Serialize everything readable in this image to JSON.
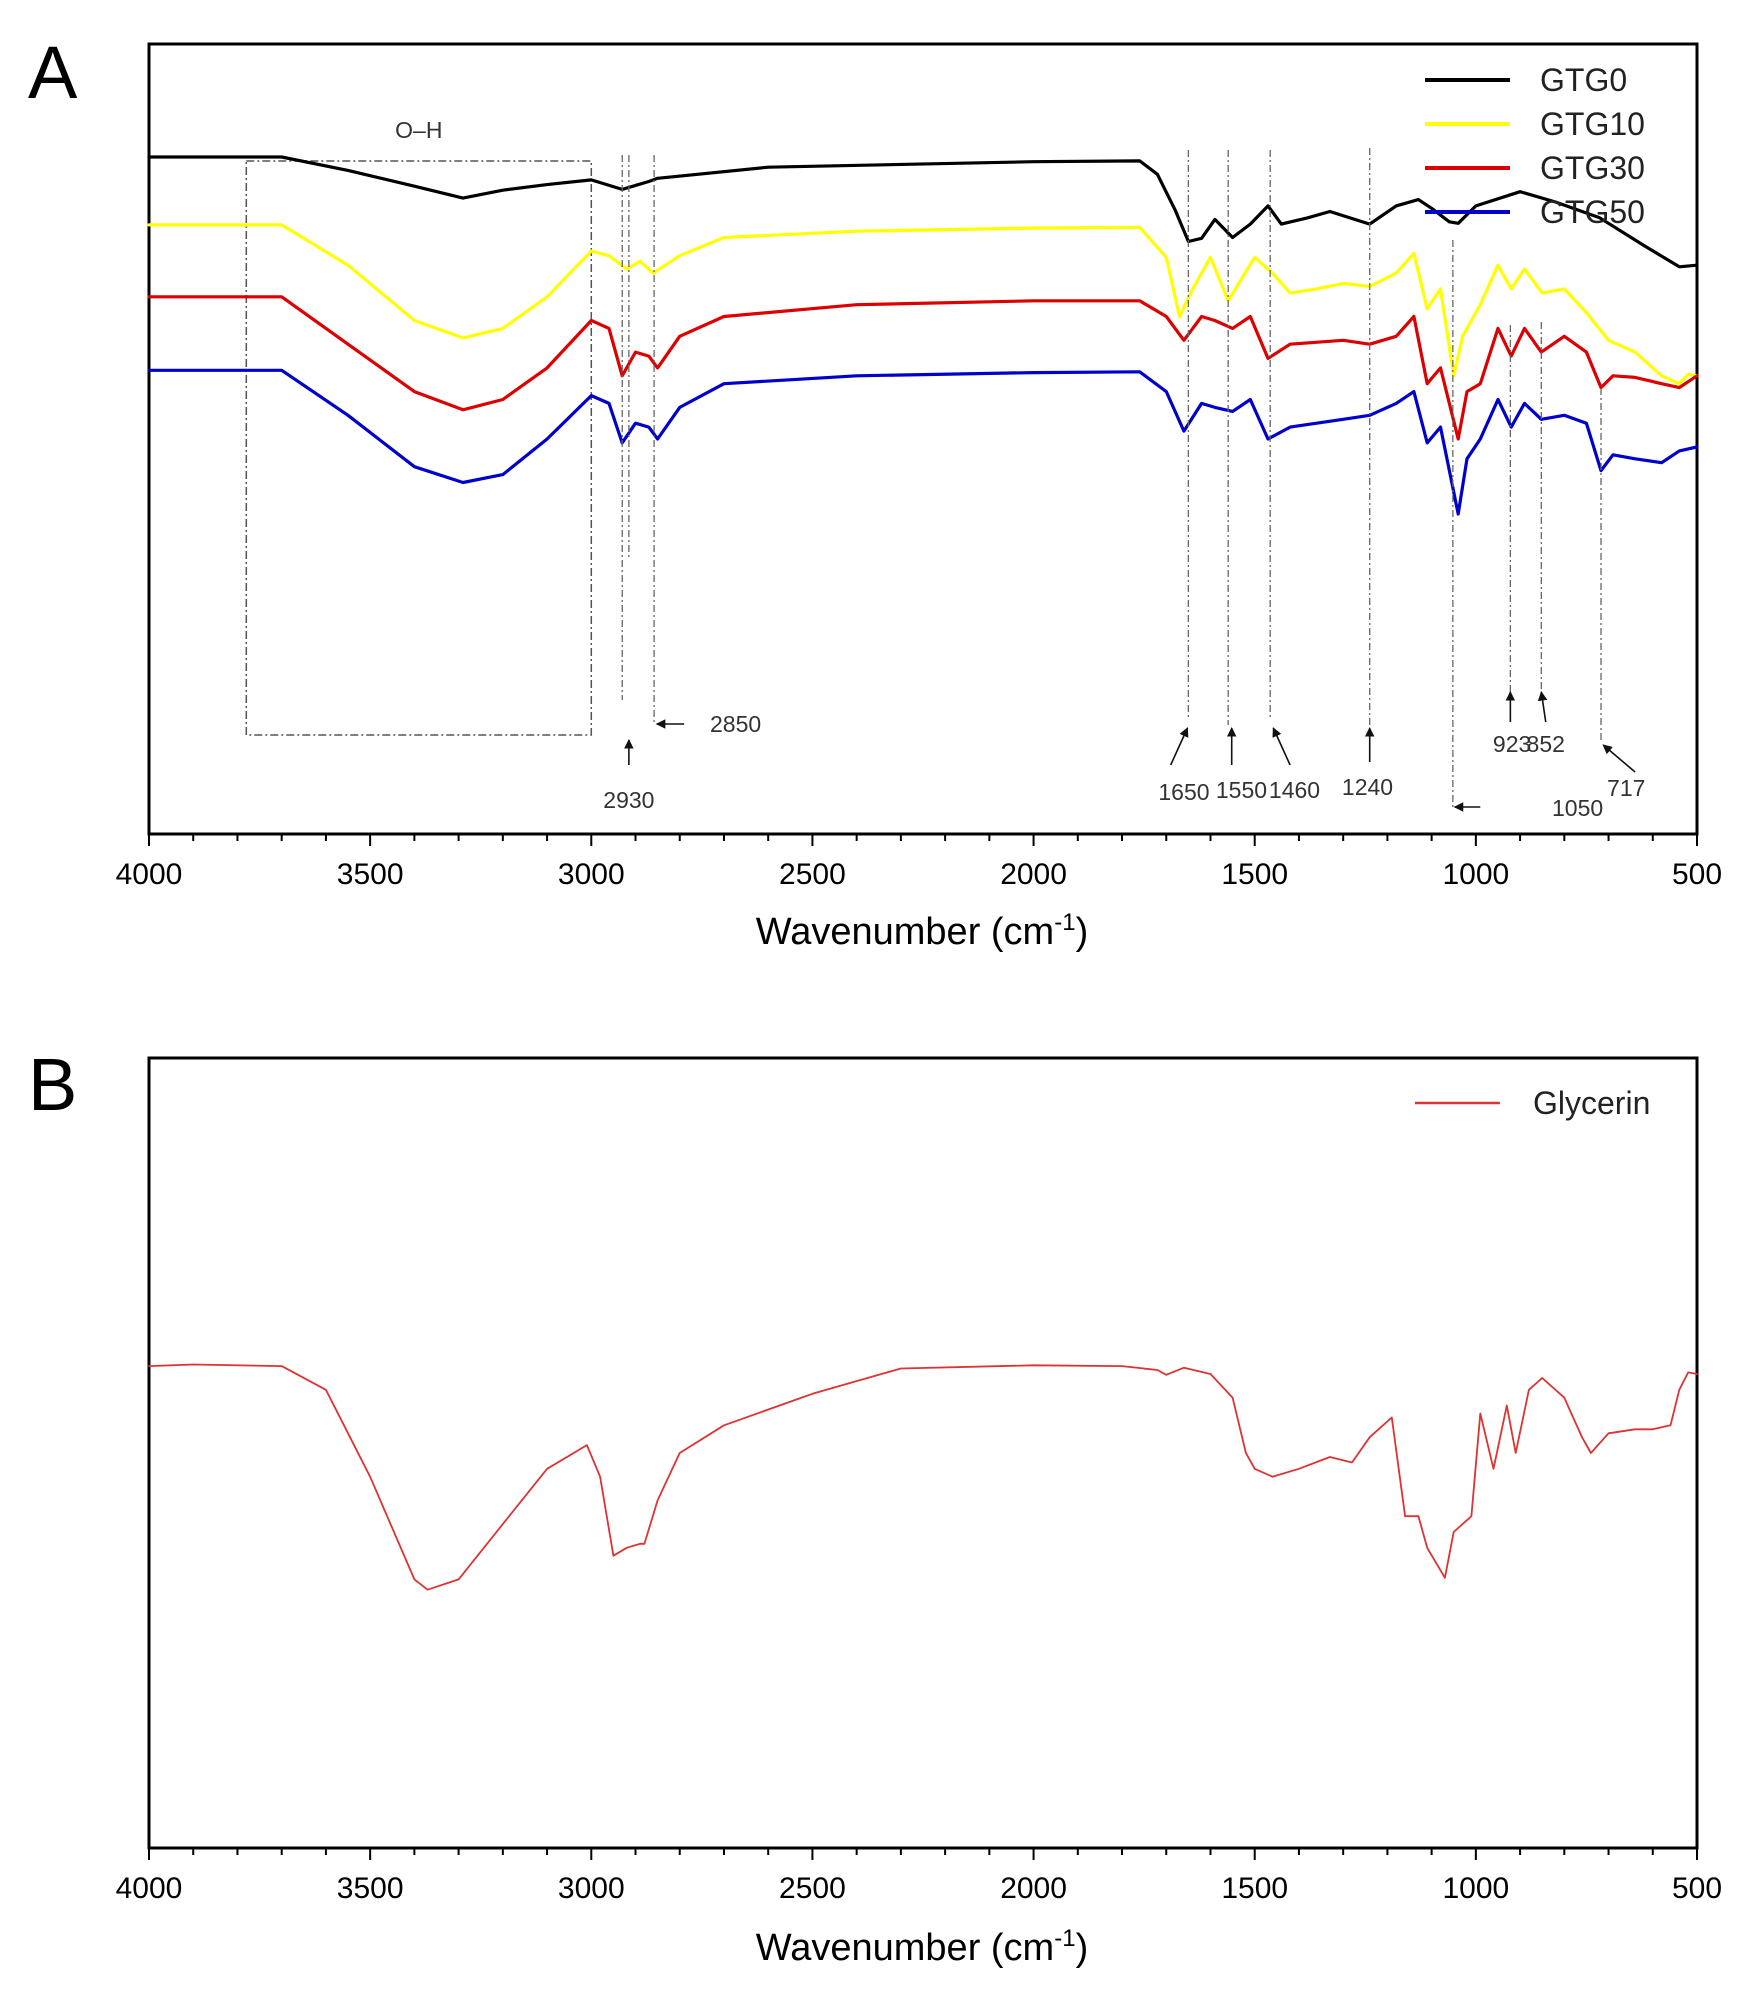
{
  "chart_data": [
    {
      "panel": "A",
      "type": "line",
      "title": "",
      "xlabel": "Wavenumber (cm",
      "xlabel_sup": "-1",
      "xlabel_close": ")",
      "ylabel": "",
      "xlim": [
        4000,
        500
      ],
      "xticks": [
        "4000",
        "3500",
        "3000",
        "2500",
        "2000",
        "1500",
        "1000",
        "500"
      ],
      "legend_position": "top-right",
      "series": [
        {
          "name": "GTG0",
          "color": "#000000",
          "points": [
            [
              4000,
              0.143
            ],
            [
              3700,
              0.143
            ],
            [
              3550,
              0.16
            ],
            [
              3400,
              0.18
            ],
            [
              3290,
              0.195
            ],
            [
              3200,
              0.185
            ],
            [
              3100,
              0.178
            ],
            [
              3000,
              0.172
            ],
            [
              2930,
              0.184
            ],
            [
              2870,
              0.174
            ],
            [
              2850,
              0.17
            ],
            [
              2600,
              0.156
            ],
            [
              2000,
              0.149
            ],
            [
              1760,
              0.148
            ],
            [
              1720,
              0.165
            ],
            [
              1680,
              0.21
            ],
            [
              1650,
              0.25
            ],
            [
              1620,
              0.246
            ],
            [
              1590,
              0.222
            ],
            [
              1550,
              0.245
            ],
            [
              1510,
              0.228
            ],
            [
              1470,
              0.205
            ],
            [
              1440,
              0.228
            ],
            [
              1380,
              0.22
            ],
            [
              1330,
              0.212
            ],
            [
              1240,
              0.228
            ],
            [
              1180,
              0.205
            ],
            [
              1130,
              0.197
            ],
            [
              1100,
              0.208
            ],
            [
              1060,
              0.225
            ],
            [
              1040,
              0.227
            ],
            [
              1000,
              0.205
            ],
            [
              900,
              0.187
            ],
            [
              820,
              0.2
            ],
            [
              720,
              0.22
            ],
            [
              620,
              0.255
            ],
            [
              540,
              0.282
            ],
            [
              500,
              0.28
            ]
          ]
        },
        {
          "name": "GTG10",
          "color": "#ffff00",
          "points": [
            [
              4000,
              0.229
            ],
            [
              3700,
              0.229
            ],
            [
              3550,
              0.28
            ],
            [
              3400,
              0.35
            ],
            [
              3290,
              0.372
            ],
            [
              3200,
              0.36
            ],
            [
              3100,
              0.32
            ],
            [
              3000,
              0.262
            ],
            [
              2960,
              0.268
            ],
            [
              2920,
              0.285
            ],
            [
              2890,
              0.275
            ],
            [
              2860,
              0.29
            ],
            [
              2800,
              0.268
            ],
            [
              2700,
              0.245
            ],
            [
              2400,
              0.237
            ],
            [
              2000,
              0.233
            ],
            [
              1760,
              0.232
            ],
            [
              1700,
              0.27
            ],
            [
              1670,
              0.345
            ],
            [
              1640,
              0.31
            ],
            [
              1600,
              0.27
            ],
            [
              1560,
              0.325
            ],
            [
              1500,
              0.27
            ],
            [
              1460,
              0.29
            ],
            [
              1420,
              0.315
            ],
            [
              1360,
              0.31
            ],
            [
              1300,
              0.303
            ],
            [
              1240,
              0.307
            ],
            [
              1180,
              0.29
            ],
            [
              1140,
              0.265
            ],
            [
              1110,
              0.335
            ],
            [
              1080,
              0.31
            ],
            [
              1050,
              0.42
            ],
            [
              1030,
              0.37
            ],
            [
              990,
              0.33
            ],
            [
              950,
              0.28
            ],
            [
              920,
              0.31
            ],
            [
              890,
              0.285
            ],
            [
              850,
              0.315
            ],
            [
              800,
              0.31
            ],
            [
              750,
              0.34
            ],
            [
              700,
              0.375
            ],
            [
              640,
              0.39
            ],
            [
              580,
              0.42
            ],
            [
              540,
              0.43
            ],
            [
              520,
              0.418
            ],
            [
              500,
              0.42
            ]
          ]
        },
        {
          "name": "GTG30",
          "color": "#dd0000",
          "points": [
            [
              4000,
              0.32
            ],
            [
              3700,
              0.32
            ],
            [
              3550,
              0.38
            ],
            [
              3400,
              0.44
            ],
            [
              3290,
              0.463
            ],
            [
              3200,
              0.45
            ],
            [
              3100,
              0.41
            ],
            [
              3000,
              0.35
            ],
            [
              2960,
              0.36
            ],
            [
              2930,
              0.42
            ],
            [
              2900,
              0.39
            ],
            [
              2870,
              0.395
            ],
            [
              2850,
              0.41
            ],
            [
              2800,
              0.37
            ],
            [
              2700,
              0.345
            ],
            [
              2400,
              0.33
            ],
            [
              2000,
              0.325
            ],
            [
              1760,
              0.325
            ],
            [
              1700,
              0.345
            ],
            [
              1660,
              0.375
            ],
            [
              1620,
              0.345
            ],
            [
              1590,
              0.35
            ],
            [
              1550,
              0.36
            ],
            [
              1510,
              0.345
            ],
            [
              1470,
              0.398
            ],
            [
              1420,
              0.38
            ],
            [
              1300,
              0.375
            ],
            [
              1240,
              0.38
            ],
            [
              1180,
              0.37
            ],
            [
              1140,
              0.345
            ],
            [
              1110,
              0.43
            ],
            [
              1080,
              0.41
            ],
            [
              1040,
              0.5
            ],
            [
              1020,
              0.44
            ],
            [
              990,
              0.43
            ],
            [
              950,
              0.36
            ],
            [
              920,
              0.395
            ],
            [
              890,
              0.36
            ],
            [
              852,
              0.39
            ],
            [
              800,
              0.37
            ],
            [
              750,
              0.39
            ],
            [
              717,
              0.435
            ],
            [
              690,
              0.42
            ],
            [
              640,
              0.422
            ],
            [
              580,
              0.43
            ],
            [
              540,
              0.435
            ],
            [
              500,
              0.42
            ]
          ]
        },
        {
          "name": "GTG50",
          "color": "#0000cc",
          "points": [
            [
              4000,
              0.413
            ],
            [
              3700,
              0.413
            ],
            [
              3550,
              0.47
            ],
            [
              3400,
              0.535
            ],
            [
              3290,
              0.555
            ],
            [
              3200,
              0.545
            ],
            [
              3100,
              0.5
            ],
            [
              3000,
              0.445
            ],
            [
              2960,
              0.455
            ],
            [
              2930,
              0.505
            ],
            [
              2900,
              0.48
            ],
            [
              2870,
              0.485
            ],
            [
              2850,
              0.5
            ],
            [
              2800,
              0.46
            ],
            [
              2700,
              0.43
            ],
            [
              2400,
              0.42
            ],
            [
              2000,
              0.416
            ],
            [
              1760,
              0.415
            ],
            [
              1700,
              0.44
            ],
            [
              1660,
              0.49
            ],
            [
              1620,
              0.455
            ],
            [
              1590,
              0.46
            ],
            [
              1550,
              0.465
            ],
            [
              1510,
              0.45
            ],
            [
              1470,
              0.5
            ],
            [
              1420,
              0.485
            ],
            [
              1300,
              0.475
            ],
            [
              1240,
              0.47
            ],
            [
              1180,
              0.455
            ],
            [
              1140,
              0.44
            ],
            [
              1110,
              0.505
            ],
            [
              1080,
              0.485
            ],
            [
              1040,
              0.595
            ],
            [
              1020,
              0.525
            ],
            [
              990,
              0.5
            ],
            [
              950,
              0.45
            ],
            [
              920,
              0.485
            ],
            [
              890,
              0.455
            ],
            [
              852,
              0.475
            ],
            [
              800,
              0.47
            ],
            [
              750,
              0.48
            ],
            [
              717,
              0.54
            ],
            [
              690,
              0.52
            ],
            [
              640,
              0.525
            ],
            [
              580,
              0.53
            ],
            [
              540,
              0.515
            ],
            [
              500,
              0.51
            ]
          ]
        }
      ],
      "box_label": "O–H",
      "box_range": [
        3780,
        3000
      ],
      "annotations": [
        "2930",
        "2850",
        "1650",
        "1550",
        "1460",
        "1240",
        "1050",
        "923",
        "852",
        "717"
      ]
    },
    {
      "panel": "B",
      "type": "line",
      "title": "",
      "xlabel": "Wavenumber (cm",
      "xlabel_sup": "-1",
      "xlabel_close": ")",
      "ylabel": "",
      "xlim": [
        4000,
        500
      ],
      "xticks": [
        "4000",
        "3500",
        "3000",
        "2500",
        "2000",
        "1500",
        "1000",
        "500"
      ],
      "legend_position": "top-right",
      "series": [
        {
          "name": "Glycerin",
          "color": "#dd3333",
          "points": [
            [
              4000,
              0.39
            ],
            [
              3900,
              0.388
            ],
            [
              3700,
              0.39
            ],
            [
              3600,
              0.42
            ],
            [
              3500,
              0.53
            ],
            [
              3400,
              0.66
            ],
            [
              3370,
              0.673
            ],
            [
              3300,
              0.66
            ],
            [
              3200,
              0.59
            ],
            [
              3100,
              0.52
            ],
            [
              3010,
              0.49
            ],
            [
              2980,
              0.53
            ],
            [
              2950,
              0.63
            ],
            [
              2920,
              0.62
            ],
            [
              2890,
              0.615
            ],
            [
              2880,
              0.615
            ],
            [
              2850,
              0.56
            ],
            [
              2800,
              0.5
            ],
            [
              2700,
              0.465
            ],
            [
              2500,
              0.425
            ],
            [
              2300,
              0.393
            ],
            [
              2000,
              0.389
            ],
            [
              1800,
              0.39
            ],
            [
              1720,
              0.395
            ],
            [
              1700,
              0.401
            ],
            [
              1660,
              0.392
            ],
            [
              1600,
              0.4
            ],
            [
              1550,
              0.43
            ],
            [
              1520,
              0.5
            ],
            [
              1500,
              0.52
            ],
            [
              1460,
              0.53
            ],
            [
              1400,
              0.52
            ],
            [
              1330,
              0.505
            ],
            [
              1280,
              0.512
            ],
            [
              1240,
              0.48
            ],
            [
              1190,
              0.455
            ],
            [
              1160,
              0.58
            ],
            [
              1130,
              0.58
            ],
            [
              1110,
              0.62
            ],
            [
              1070,
              0.658
            ],
            [
              1050,
              0.6
            ],
            [
              1010,
              0.58
            ],
            [
              990,
              0.45
            ],
            [
              960,
              0.52
            ],
            [
              930,
              0.44
            ],
            [
              910,
              0.5
            ],
            [
              880,
              0.42
            ],
            [
              850,
              0.405
            ],
            [
              800,
              0.43
            ],
            [
              760,
              0.48
            ],
            [
              740,
              0.5
            ],
            [
              700,
              0.475
            ],
            [
              640,
              0.47
            ],
            [
              600,
              0.47
            ],
            [
              560,
              0.465
            ],
            [
              540,
              0.42
            ],
            [
              520,
              0.398
            ],
            [
              500,
              0.4
            ]
          ]
        }
      ]
    }
  ]
}
